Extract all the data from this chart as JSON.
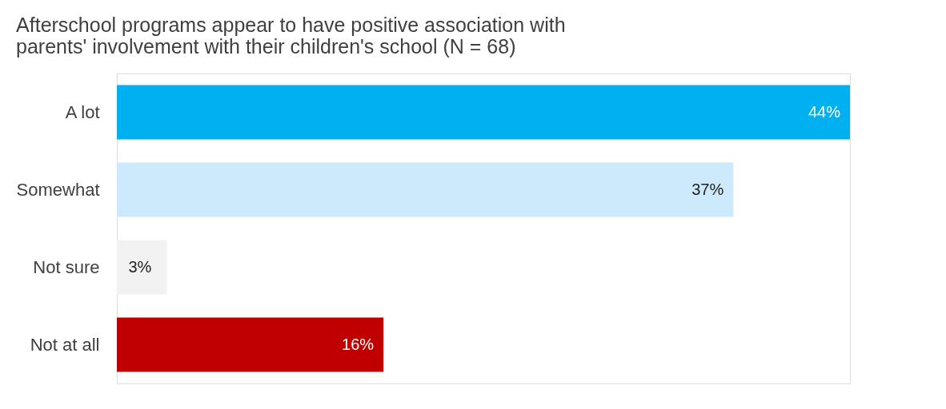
{
  "chart_data": {
    "type": "bar",
    "orientation": "horizontal",
    "title": "Afterschool programs appear to have positive association with parents' involvement with their children's school (N = 68)",
    "categories": [
      "A lot",
      "Somewhat",
      "Not sure",
      "Not at all"
    ],
    "values": [
      44,
      37,
      3,
      16
    ],
    "colors": [
      "#00b0f0",
      "#cdeafc",
      "#f2f2f2",
      "#c00000"
    ],
    "value_labels": [
      "44%",
      "37%",
      "3%",
      "16%"
    ],
    "tick_labels": "y",
    "grid": false
  }
}
